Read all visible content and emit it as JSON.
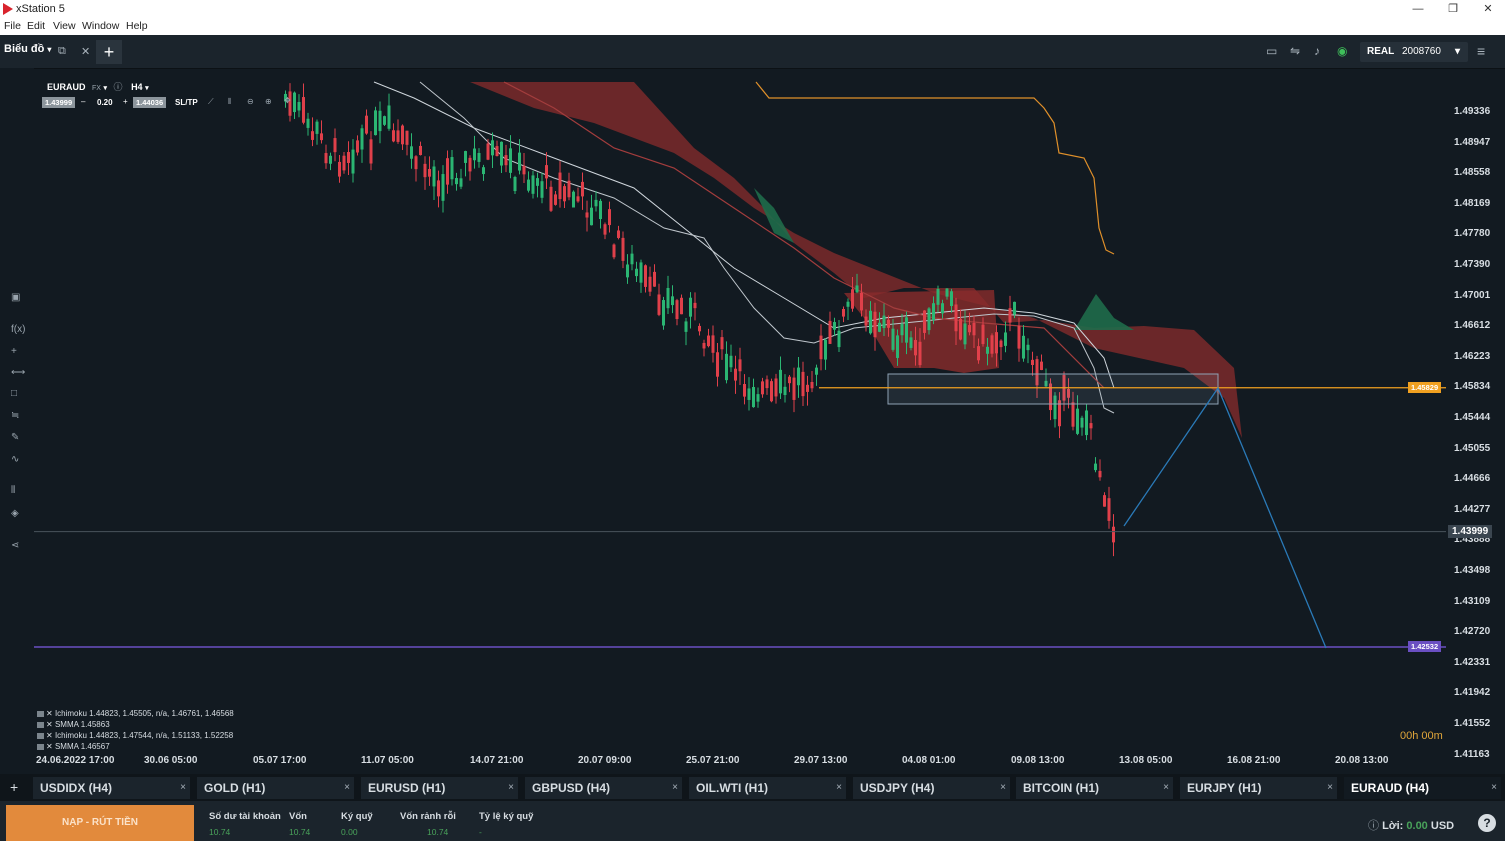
{
  "window": {
    "title": "xStation 5",
    "minimize": "—",
    "restore": "❐",
    "close": "✕"
  },
  "menu": [
    "File",
    "Edit",
    "View",
    "Window",
    "Help"
  ],
  "topbar": {
    "tab_label": "Biểu đồ",
    "account_mode": "REAL",
    "account_number": "2008760"
  },
  "chart_header": {
    "symbol": "EURAUD",
    "market": "FX",
    "timeframe": "H4",
    "sell_price": "1.43999",
    "volume": "0.20",
    "buy_price": "1.44036",
    "sl_tp": "SL/TP"
  },
  "chart_data": {
    "type": "candlestick",
    "symbol": "EURAUD",
    "timeframe": "H4",
    "y_ticks": [
      "1.49336",
      "1.48947",
      "1.48558",
      "1.48169",
      "1.47780",
      "1.47390",
      "1.47001",
      "1.46612",
      "1.46223",
      "1.45834",
      "1.45444",
      "1.45055",
      "1.44666",
      "1.44277",
      "1.43888",
      "1.43498",
      "1.43109",
      "1.42720",
      "1.42331",
      "1.41942",
      "1.41552",
      "1.41163"
    ],
    "y_range": [
      1.41163,
      1.49336
    ],
    "x_ticks": [
      "24.06.2022 17:00",
      "30.06 05:00",
      "05.07 17:00",
      "11.07 05:00",
      "14.07 21:00",
      "20.07 09:00",
      "25.07 21:00",
      "29.07 13:00",
      "04.08 01:00",
      "09.08 13:00",
      "13.08 05:00",
      "16.08 21:00",
      "20.08 13:00"
    ],
    "current_price": "1.43999",
    "horizontal_levels": [
      {
        "value": "1.45829",
        "color": "#f0a020"
      },
      {
        "value": "1.42532",
        "color": "#6a4fc2"
      }
    ],
    "indicators": [
      "Ichimoku 1.44823, 1.45505, n/a, 1.46761, 1.46568",
      "SMMA 1.45863",
      "Ichimoku 1.44823, 1.47544, n/a, 1.51133, 1.52258",
      "SMMA 1.46567"
    ],
    "candle_timer": "00h 00m",
    "colors": {
      "up": "#2bb673",
      "down": "#e0404a",
      "kumo_bear": "#8a2c2c",
      "kumo_bull": "#1f6b4a",
      "projection": "#2a7ab8"
    }
  },
  "instrument_tabs": [
    {
      "label": "USDIDX (H4)",
      "close": "×"
    },
    {
      "label": "GOLD (H1)",
      "close": "×"
    },
    {
      "label": "EURUSD (H1)",
      "close": "×"
    },
    {
      "label": "GBPUSD (H4)",
      "close": "×"
    },
    {
      "label": "OIL.WTI (H1)",
      "close": "×"
    },
    {
      "label": "USDJPY (H4)",
      "close": "×"
    },
    {
      "label": "BITCOIN (H1)",
      "close": "×"
    },
    {
      "label": "EURJPY (H1)",
      "close": "×"
    },
    {
      "label": "EURAUD (H4)",
      "close": "×"
    }
  ],
  "add_tab": "+",
  "bottom": {
    "deposit_button": "NẠP - RÚT TIỀN",
    "stats": [
      {
        "label": "Số dư tài khoản",
        "value": "10.74"
      },
      {
        "label": "Vốn",
        "value": "10.74"
      },
      {
        "label": "Ký quỹ",
        "value": "0.00"
      },
      {
        "label": "Vốn rảnh rỗi",
        "value": "10.74"
      },
      {
        "label": "Tỷ lệ ký quỹ",
        "value": "-"
      }
    ],
    "profit_label": "Lời:",
    "profit_value": "0.00",
    "profit_currency": "USD",
    "help": "?"
  }
}
